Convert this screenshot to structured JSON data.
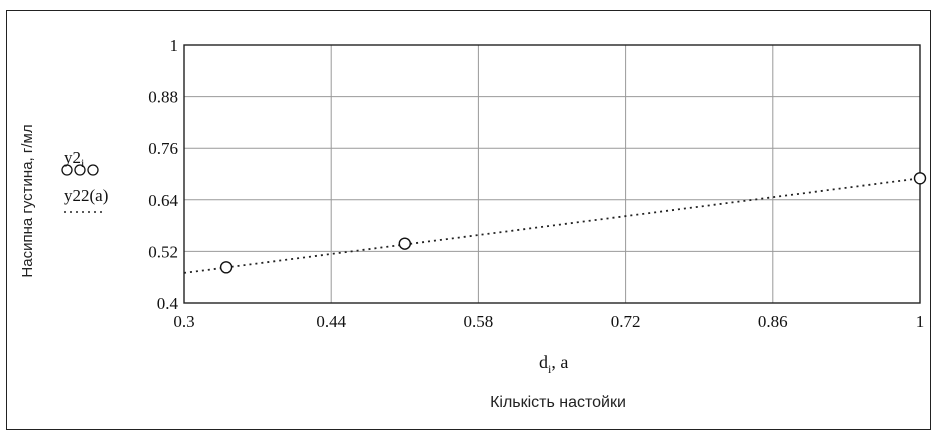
{
  "chart_data": {
    "type": "scatter",
    "xlim": [
      0.3,
      1
    ],
    "ylim": [
      0.4,
      1
    ],
    "x_ticks": [
      "0.3",
      "0.44",
      "0.58",
      "0.72",
      "0.86",
      "1"
    ],
    "y_ticks": [
      "0.4",
      "0.52",
      "0.64",
      "0.76",
      "0.88",
      "1"
    ],
    "grid": true,
    "xlabel_ru": "Кількість настойки",
    "xvar_label": "d",
    "xvar_sub": "i",
    "xvar_suffix": ", a",
    "ylabel": "Насипна густина, г/мл",
    "legend": {
      "series1_name": "y2",
      "series1_sub": "i",
      "series1_symbol": "ooo",
      "series2_name": "y22(a)",
      "series2_symbol": "- - - -"
    },
    "series": [
      {
        "style": "circles",
        "x": [
          0.34,
          0.51,
          1.0
        ],
        "y": [
          0.483,
          0.538,
          0.69
        ]
      },
      {
        "style": "dotted-line",
        "x": [
          0.3,
          1.0
        ],
        "y": [
          0.47,
          0.69
        ]
      }
    ]
  }
}
